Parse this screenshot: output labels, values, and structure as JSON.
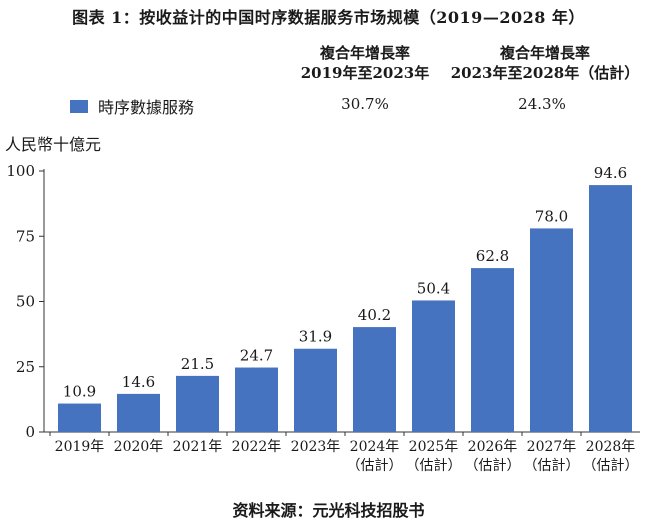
{
  "header": {
    "title": "图表 1：按收益计的中国时序数据服务市场规模（2019—2028 年）"
  },
  "cagr": [
    {
      "head1": "複合年增長率",
      "head2": "2019年至2023年",
      "value": "30.7%"
    },
    {
      "head1": "複合年增長率",
      "head2": "2023年至2028年（估計）",
      "value": "24.3%"
    }
  ],
  "legend": {
    "label": "時序數據服務"
  },
  "unit_label": "人民幣十億元",
  "footer": {
    "source": "资料来源：元光科技招股书"
  },
  "colors": {
    "bar": "#4573c0",
    "axis": "#333333"
  },
  "chart_data": {
    "type": "bar",
    "title": "图表 1：按收益计的中国时序数据服务市场规模（2019—2028 年）",
    "ylabel": "人民幣十億元",
    "ylim": [
      0,
      100
    ],
    "yticks": [
      0,
      25,
      50,
      75,
      100
    ],
    "categories": [
      "2019年",
      "2020年",
      "2021年",
      "2022年",
      "2023年",
      "2024年",
      "2025年",
      "2026年",
      "2027年",
      "2028年"
    ],
    "category_notes": [
      "",
      "",
      "",
      "",
      "",
      "（估計）",
      "（估計）",
      "（估計）",
      "（估計）",
      "（估計）"
    ],
    "series": [
      {
        "name": "時序數據服務",
        "values": [
          10.9,
          14.6,
          21.5,
          24.7,
          31.9,
          40.2,
          50.4,
          62.8,
          78.0,
          94.6
        ]
      }
    ],
    "value_labels": [
      "10.9",
      "14.6",
      "21.5",
      "24.7",
      "31.9",
      "40.2",
      "50.4",
      "62.8",
      "78.0",
      "94.6"
    ]
  }
}
